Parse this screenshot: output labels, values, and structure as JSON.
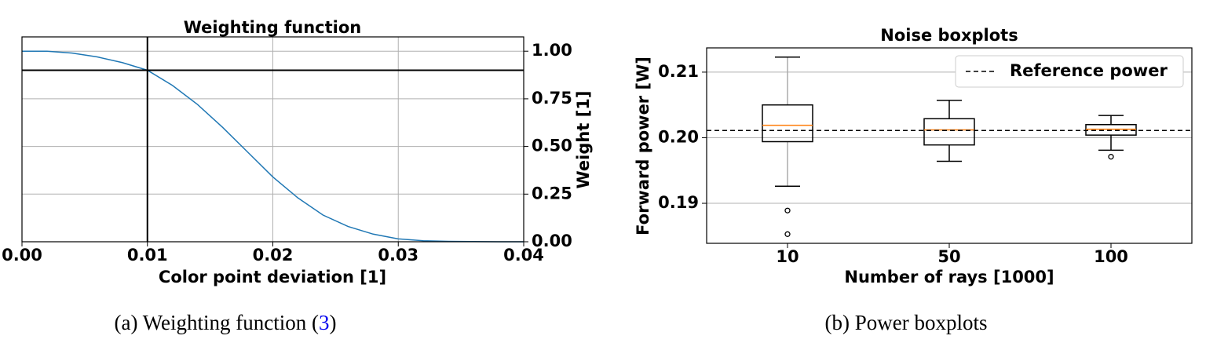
{
  "chart_data": [
    {
      "type": "line",
      "title": "Weighting function",
      "xlabel": "Color point deviation [1]",
      "ylabel": "Weight [1]",
      "x": [
        0,
        0.002,
        0.004,
        0.006,
        0.008,
        0.01,
        0.012,
        0.014,
        0.016,
        0.018,
        0.02,
        0.022,
        0.024,
        0.026,
        0.028,
        0.03,
        0.032,
        0.034,
        0.036,
        0.038,
        0.04
      ],
      "values": [
        1.0,
        1.0,
        0.99,
        0.97,
        0.94,
        0.9,
        0.82,
        0.72,
        0.6,
        0.47,
        0.34,
        0.23,
        0.14,
        0.08,
        0.04,
        0.015,
        0.005,
        0.002,
        0.001,
        0,
        0
      ],
      "color": "#1f77b4",
      "xlim": [
        0,
        0.04
      ],
      "ylim": [
        0,
        1.075
      ],
      "xticks": [
        {
          "value": 0,
          "label": "0.00"
        },
        {
          "value": 0.01,
          "label": "0.01"
        },
        {
          "value": 0.02,
          "label": "0.02"
        },
        {
          "value": 0.03,
          "label": "0.03"
        },
        {
          "value": 0.04,
          "label": "0.04"
        }
      ],
      "yticks": [
        {
          "value": 0,
          "label": "0.00"
        },
        {
          "value": 0.25,
          "label": "0.25"
        },
        {
          "value": 0.5,
          "label": "0.50"
        },
        {
          "value": 0.75,
          "label": "0.75"
        },
        {
          "value": 1,
          "label": "1.00"
        }
      ],
      "y_axis_side": "right",
      "grid": true,
      "hlines": [
        0.9
      ],
      "vlines": [
        0.01
      ],
      "ref_color": "#000000"
    },
    {
      "type": "boxplot",
      "title": "Noise boxplots",
      "xlabel": "Number of rays [1000]",
      "ylabel": "Forward power [W]",
      "categories": [
        "10",
        "50",
        "100"
      ],
      "boxes": [
        {
          "whislo": 0.1926,
          "q1": 0.1994,
          "med": 0.2019,
          "q3": 0.205,
          "whishi": 0.2123,
          "fliers": [
            0.1889,
            0.1853
          ]
        },
        {
          "whislo": 0.1964,
          "q1": 0.1989,
          "med": 0.2012,
          "q3": 0.2029,
          "whishi": 0.2057,
          "fliers": []
        },
        {
          "whislo": 0.1981,
          "q1": 0.2004,
          "med": 0.2013,
          "q3": 0.202,
          "whishi": 0.2034,
          "fliers": [
            0.1971
          ]
        }
      ],
      "box_color": "#000000",
      "median_color": "#ff7f0e",
      "ylim": [
        0.1839,
        0.2137
      ],
      "yticks": [
        0.19,
        {
          "value": 0.2,
          "label": "0.20"
        },
        0.21
      ],
      "grid": true,
      "reference": {
        "name": "Reference power",
        "value": 0.2011
      },
      "legend": "upper right"
    }
  ],
  "captions": [
    {
      "text": "(a)  Weighting function (",
      "ref": "3",
      "end": ")"
    },
    {
      "text": "(b)  Power boxplots"
    }
  ]
}
